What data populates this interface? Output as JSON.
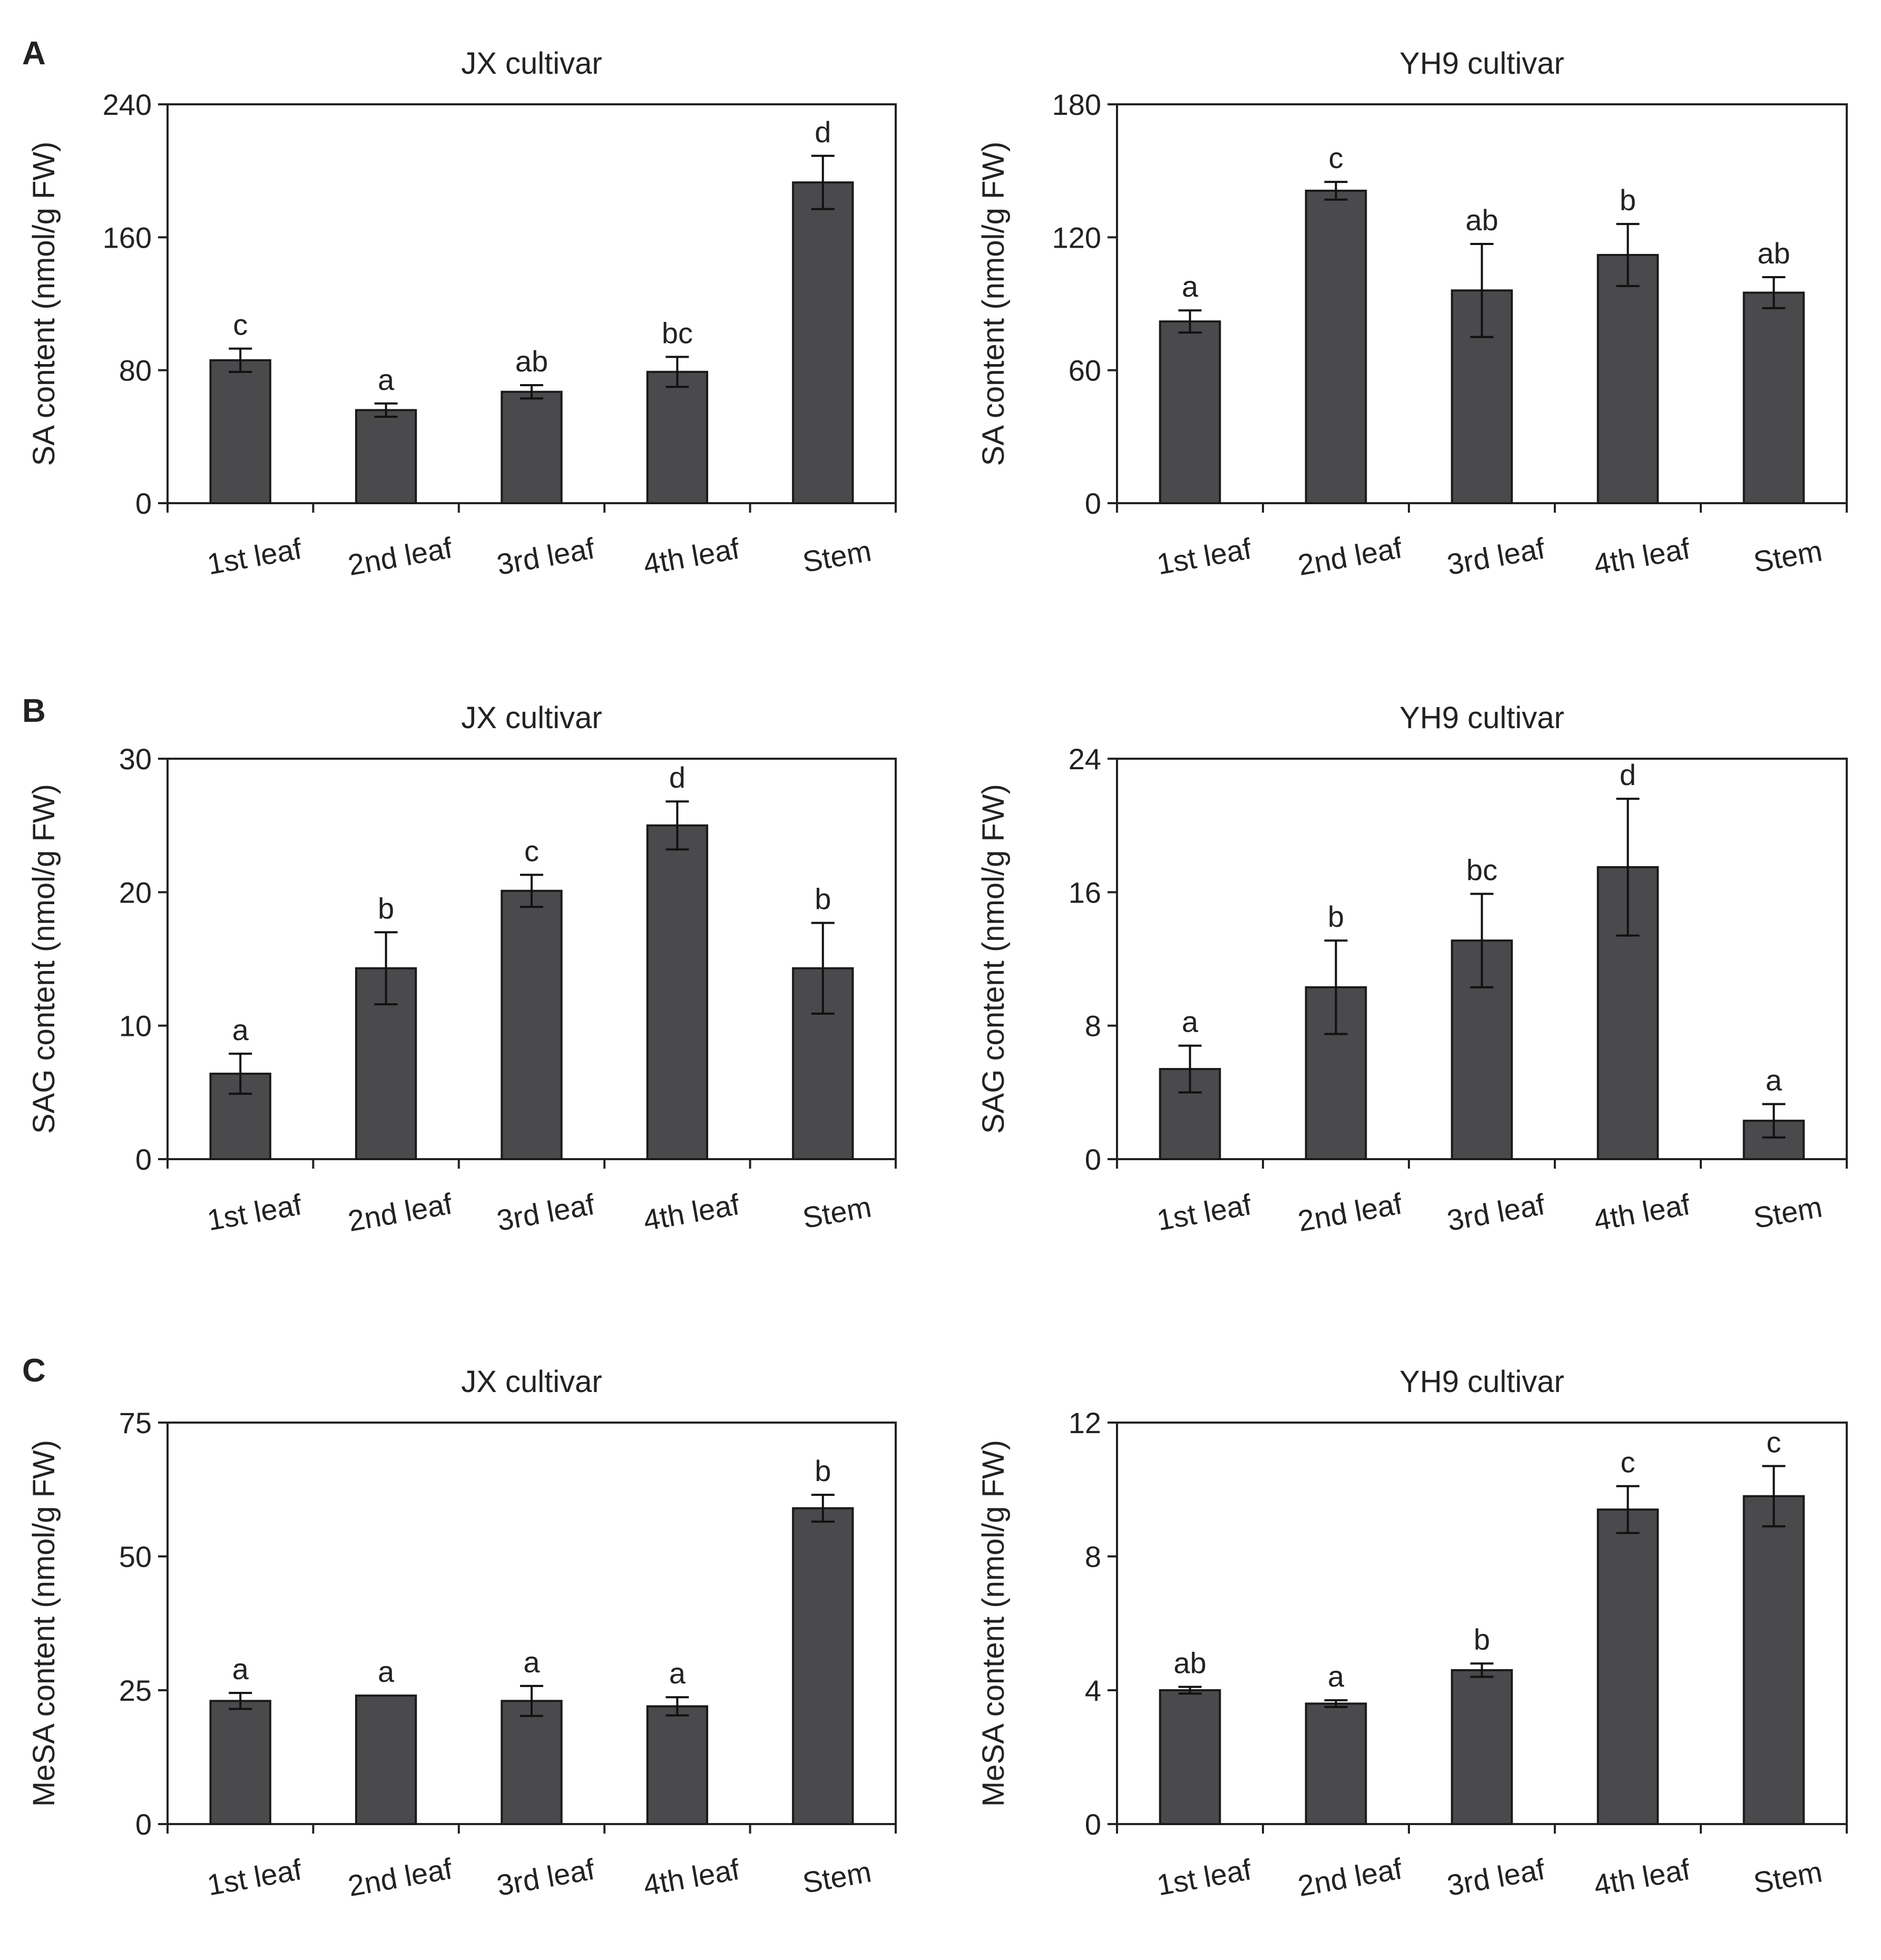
{
  "panels": [
    {
      "letter": "A"
    },
    {
      "letter": "B"
    },
    {
      "letter": "C"
    }
  ],
  "style": {
    "bar_color": "#4a4a4d",
    "axis_color": "#222222"
  },
  "chart_data": [
    {
      "type": "bar",
      "panel": "A",
      "title": "JX cultivar",
      "ylabel": "SA content (nmol/g FW)",
      "categories": [
        "1st leaf",
        "2nd leaf",
        "3rd leaf",
        "4th leaf",
        "Stem"
      ],
      "values": [
        86,
        56,
        67,
        79,
        193
      ],
      "errors": [
        7,
        4,
        4,
        9,
        16
      ],
      "significance": [
        "c",
        "a",
        "ab",
        "bc",
        "d"
      ],
      "ylim": [
        0,
        240
      ],
      "yticks": [
        0,
        80,
        160,
        240
      ]
    },
    {
      "type": "bar",
      "panel": "A",
      "title": "YH9 cultivar",
      "ylabel": "SA content (nmol/g FW)",
      "categories": [
        "1st leaf",
        "2nd leaf",
        "3rd leaf",
        "4th leaf",
        "Stem"
      ],
      "values": [
        82,
        141,
        96,
        112,
        95
      ],
      "errors": [
        5,
        4,
        21,
        14,
        7
      ],
      "significance": [
        "a",
        "c",
        "ab",
        "b",
        "ab"
      ],
      "ylim": [
        0,
        180
      ],
      "yticks": [
        0,
        60,
        120,
        180
      ]
    },
    {
      "type": "bar",
      "panel": "B",
      "title": "JX cultivar",
      "ylabel": "SAG content (nmol/g FW)",
      "categories": [
        "1st leaf",
        "2nd leaf",
        "3rd leaf",
        "4th leaf",
        "Stem"
      ],
      "values": [
        6.4,
        14.3,
        20.1,
        25.0,
        14.3
      ],
      "errors": [
        1.5,
        2.7,
        1.2,
        1.8,
        3.4
      ],
      "significance": [
        "a",
        "b",
        "c",
        "d",
        "b"
      ],
      "ylim": [
        0,
        30
      ],
      "yticks": [
        0,
        10,
        20,
        30
      ]
    },
    {
      "type": "bar",
      "panel": "B",
      "title": "YH9 cultivar",
      "ylabel": "SAG content (nmol/g FW)",
      "categories": [
        "1st leaf",
        "2nd leaf",
        "3rd leaf",
        "4th leaf",
        "Stem"
      ],
      "values": [
        5.4,
        10.3,
        13.1,
        17.5,
        2.3
      ],
      "errors": [
        1.4,
        2.8,
        2.8,
        4.1,
        1.0
      ],
      "significance": [
        "a",
        "b",
        "bc",
        "d",
        "a"
      ],
      "ylim": [
        0,
        24
      ],
      "yticks": [
        0,
        8,
        16,
        24
      ]
    },
    {
      "type": "bar",
      "panel": "C",
      "title": "JX cultivar",
      "ylabel": "MeSA content (nmol/g FW)",
      "categories": [
        "1st leaf",
        "2nd leaf",
        "3rd leaf",
        "4th leaf",
        "Stem"
      ],
      "values": [
        23,
        24,
        23,
        22,
        59
      ],
      "errors": [
        1.5,
        0,
        2.8,
        1.7,
        2.5
      ],
      "significance": [
        "a",
        "a",
        "a",
        "a",
        "b"
      ],
      "ylim": [
        0,
        75
      ],
      "yticks": [
        0,
        25,
        50,
        75
      ]
    },
    {
      "type": "bar",
      "panel": "C",
      "title": "YH9 cultivar",
      "ylabel": "MeSA content (nmol/g FW)",
      "categories": [
        "1st leaf",
        "2nd leaf",
        "3rd leaf",
        "4th leaf",
        "Stem"
      ],
      "values": [
        4.0,
        3.6,
        4.6,
        9.4,
        9.8
      ],
      "errors": [
        0.1,
        0.1,
        0.2,
        0.7,
        0.9
      ],
      "significance": [
        "ab",
        "a",
        "b",
        "c",
        "c"
      ],
      "ylim": [
        0,
        12
      ],
      "yticks": [
        0,
        4,
        8,
        12
      ]
    }
  ]
}
